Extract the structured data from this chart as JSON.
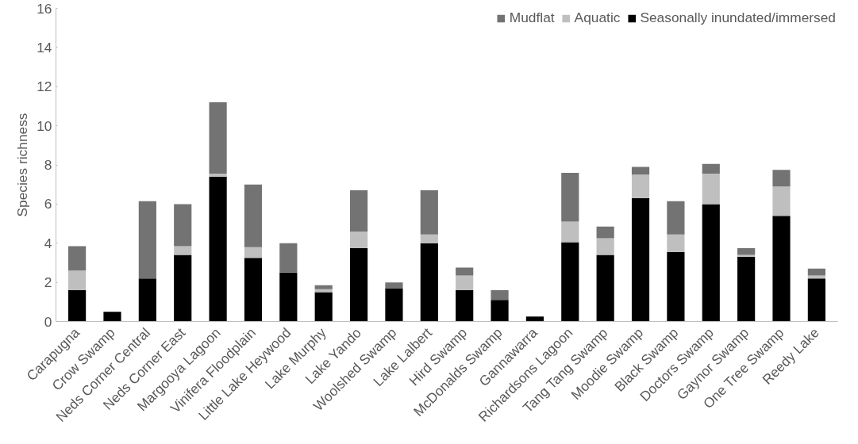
{
  "chart_data": {
    "type": "bar",
    "stacked": true,
    "ylabel": "Species richness",
    "ylim": [
      0,
      16
    ],
    "yticks": [
      0,
      2,
      4,
      6,
      8,
      10,
      12,
      14,
      16
    ],
    "grid": false,
    "legend": "top right",
    "categories": [
      "Carapugna",
      "Crow Swamp",
      "Neds Corner Central",
      "Neds Corner East",
      "Margooya Lagoon",
      "Vinifera Floodplain",
      "Little Lake Heywood",
      "Lake Murphy",
      "Lake Yando",
      "Woolshed Swamp",
      "Lake Lalbert",
      "Hird Swamp",
      "McDonalds Swamp",
      "Gannawarra",
      "Richardsons Lagoon",
      "Tang Tang Swamp",
      "Moodie Swamp",
      "Black Swamp",
      "Doctors Swamp",
      "Gaynor Swamp",
      "One Tree Swamp",
      "Reedy Lake"
    ],
    "series": [
      {
        "name": "Seasonally inundated/immersed",
        "color": "#000000",
        "values": [
          1.6,
          0.5,
          2.2,
          3.4,
          7.4,
          3.25,
          2.5,
          1.5,
          3.75,
          1.7,
          4.0,
          1.6,
          1.1,
          0.25,
          4.05,
          3.4,
          6.3,
          3.55,
          6.0,
          3.3,
          5.4,
          2.2
        ]
      },
      {
        "name": "Aquatic",
        "color": "#bfbfbf",
        "values": [
          1.0,
          0,
          0,
          0.45,
          0.15,
          0.55,
          0,
          0.15,
          0.85,
          0,
          0.45,
          0.75,
          0,
          0,
          1.05,
          0.85,
          1.2,
          0.9,
          1.55,
          0.1,
          1.5,
          0.15
        ]
      },
      {
        "name": "Mudflat",
        "color": "#737373",
        "values": [
          1.25,
          0,
          3.95,
          2.15,
          3.65,
          3.2,
          1.5,
          0.2,
          2.1,
          0.3,
          2.25,
          0.4,
          0.5,
          0,
          2.5,
          0.6,
          0.4,
          1.7,
          0.5,
          0.35,
          0.85,
          0.35
        ]
      }
    ]
  }
}
